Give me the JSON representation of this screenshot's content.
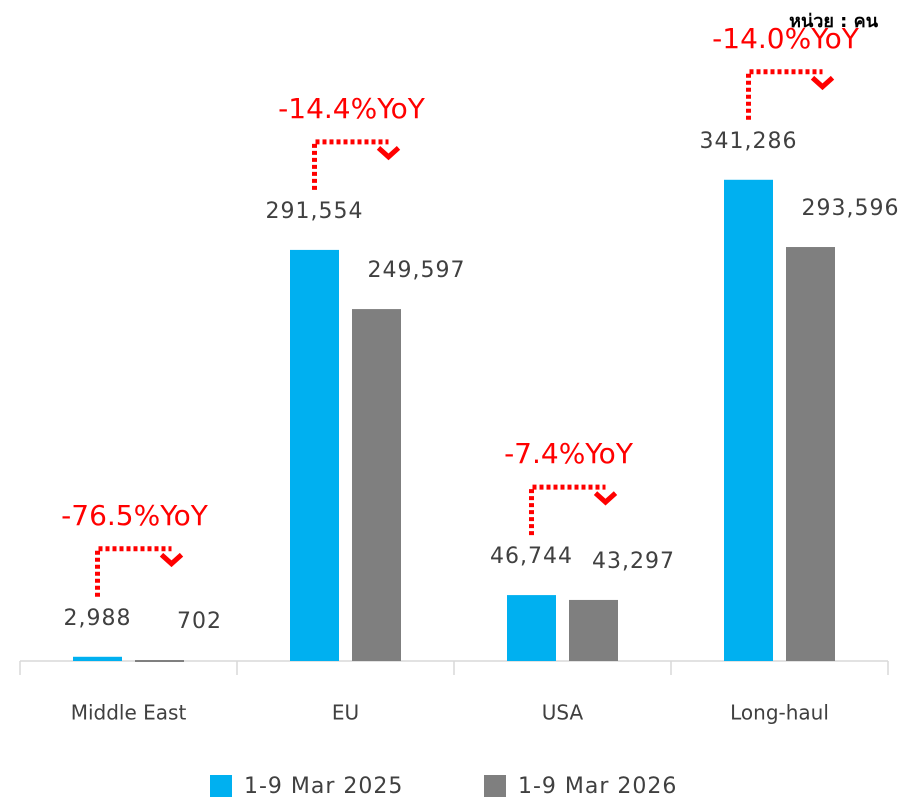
{
  "chart_data": {
    "type": "bar",
    "unit_label": "หน่วย : คน",
    "categories": [
      "Middle East",
      "EU",
      "USA",
      "Long-haul"
    ],
    "series": [
      {
        "name": "1-9 Mar 2025",
        "color": "#00b0f0",
        "values": [
          2988,
          291554,
          46744,
          341286
        ],
        "value_labels": [
          "2,988",
          "291,554",
          "46,744",
          "341,286"
        ]
      },
      {
        "name": "1-9 Mar 2026",
        "color": "#7f7f7f",
        "values": [
          702,
          249597,
          43297,
          293596
        ],
        "value_labels": [
          "702",
          "249,597",
          "43,297",
          "293,596"
        ]
      }
    ],
    "annotations": [
      "-76.5%YoY",
      "-14.4%YoY",
      "-7.4%YoY",
      "-14.0%YoY"
    ],
    "ylim": [
      0,
      400000
    ],
    "legend": "bottom"
  }
}
